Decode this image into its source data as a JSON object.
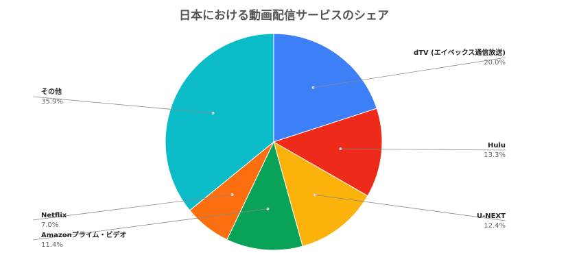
{
  "chart_data": {
    "type": "pie",
    "title": "日本における動画配信サービスのシェア",
    "slices": [
      {
        "label": "dTV (エイベックス通信放送)",
        "percent_label": "20.0%",
        "value": 20.0,
        "color": "#3d7ff7"
      },
      {
        "label": "Hulu",
        "percent_label": "13.3%",
        "value": 13.3,
        "color": "#ee2a1b"
      },
      {
        "label": "U-NEXT",
        "percent_label": "12.4%",
        "value": 12.4,
        "color": "#fbb20a"
      },
      {
        "label": "Amazonプライム・ビデオ",
        "percent_label": "11.4%",
        "value": 11.4,
        "color": "#08a356"
      },
      {
        "label": "Netflix",
        "percent_label": "7.0%",
        "value": 7.0,
        "color": "#fb6f10"
      },
      {
        "label": "その他",
        "percent_label": "35.9%",
        "value": 35.9,
        "color": "#0bbcc8"
      }
    ],
    "legend": "none"
  }
}
